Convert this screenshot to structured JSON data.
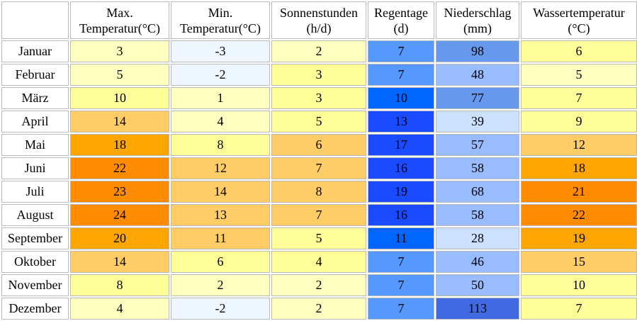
{
  "headers": [
    {
      "line1": "Max.",
      "line2": "Temperatur(°C)"
    },
    {
      "line1": "Min.",
      "line2": "Temperatur(°C)"
    },
    {
      "line1": "Sonnenstunden",
      "line2": "(h/d)"
    },
    {
      "line1": "Regentage",
      "line2": "(d)"
    },
    {
      "line1": "Niederschlag",
      "line2": "(mm)"
    },
    {
      "line1": "Wassertemperatur",
      "line2": "(°C)"
    }
  ],
  "rows": [
    {
      "month": "Januar",
      "cells": [
        {
          "v": "3",
          "c": "#ffffc0"
        },
        {
          "v": "-3",
          "c": "#eef6ff"
        },
        {
          "v": "2",
          "c": "#ffffc0"
        },
        {
          "v": "7",
          "c": "#5599ff"
        },
        {
          "v": "98",
          "c": "#6699ee"
        },
        {
          "v": "6",
          "c": "#ffff99"
        }
      ]
    },
    {
      "month": "Februar",
      "cells": [
        {
          "v": "5",
          "c": "#ffffc0"
        },
        {
          "v": "-2",
          "c": "#eef6ff"
        },
        {
          "v": "3",
          "c": "#ffff99"
        },
        {
          "v": "7",
          "c": "#5599ff"
        },
        {
          "v": "48",
          "c": "#99bbff"
        },
        {
          "v": "5",
          "c": "#ffffc0"
        }
      ]
    },
    {
      "month": "März",
      "cells": [
        {
          "v": "10",
          "c": "#ffff99"
        },
        {
          "v": "1",
          "c": "#ffffc0"
        },
        {
          "v": "3",
          "c": "#ffff99"
        },
        {
          "v": "10",
          "c": "#0066ff"
        },
        {
          "v": "77",
          "c": "#6699ee"
        },
        {
          "v": "7",
          "c": "#ffff99"
        }
      ]
    },
    {
      "month": "April",
      "cells": [
        {
          "v": "14",
          "c": "#ffcc66"
        },
        {
          "v": "4",
          "c": "#ffffc0"
        },
        {
          "v": "5",
          "c": "#ffff99"
        },
        {
          "v": "13",
          "c": "#1a4bff"
        },
        {
          "v": "39",
          "c": "#cce0ff"
        },
        {
          "v": "9",
          "c": "#ffff99"
        }
      ]
    },
    {
      "month": "Mai",
      "cells": [
        {
          "v": "18",
          "c": "#ffa500"
        },
        {
          "v": "8",
          "c": "#ffff99"
        },
        {
          "v": "6",
          "c": "#ffcc66"
        },
        {
          "v": "17",
          "c": "#1a4bff"
        },
        {
          "v": "57",
          "c": "#99bbff"
        },
        {
          "v": "12",
          "c": "#ffcc66"
        }
      ]
    },
    {
      "month": "Juni",
      "cells": [
        {
          "v": "22",
          "c": "#ff8c00"
        },
        {
          "v": "12",
          "c": "#ffcc66"
        },
        {
          "v": "7",
          "c": "#ffcc66"
        },
        {
          "v": "16",
          "c": "#1a4bff"
        },
        {
          "v": "58",
          "c": "#99bbff"
        },
        {
          "v": "18",
          "c": "#ffa500"
        }
      ]
    },
    {
      "month": "Juli",
      "cells": [
        {
          "v": "23",
          "c": "#ff8c00"
        },
        {
          "v": "14",
          "c": "#ffcc66"
        },
        {
          "v": "8",
          "c": "#ffcc66"
        },
        {
          "v": "19",
          "c": "#1a4bff"
        },
        {
          "v": "68",
          "c": "#99bbff"
        },
        {
          "v": "21",
          "c": "#ff8c00"
        }
      ]
    },
    {
      "month": "August",
      "cells": [
        {
          "v": "24",
          "c": "#ff8c00"
        },
        {
          "v": "13",
          "c": "#ffcc66"
        },
        {
          "v": "7",
          "c": "#ffcc66"
        },
        {
          "v": "16",
          "c": "#1a4bff"
        },
        {
          "v": "58",
          "c": "#99bbff"
        },
        {
          "v": "22",
          "c": "#ff8c00"
        }
      ]
    },
    {
      "month": "September",
      "cells": [
        {
          "v": "20",
          "c": "#ffa500"
        },
        {
          "v": "11",
          "c": "#ffcc66"
        },
        {
          "v": "5",
          "c": "#ffff99"
        },
        {
          "v": "11",
          "c": "#0066ff"
        },
        {
          "v": "28",
          "c": "#cce0ff"
        },
        {
          "v": "19",
          "c": "#ffa500"
        }
      ]
    },
    {
      "month": "Oktober",
      "cells": [
        {
          "v": "14",
          "c": "#ffcc66"
        },
        {
          "v": "6",
          "c": "#ffff99"
        },
        {
          "v": "4",
          "c": "#ffff99"
        },
        {
          "v": "7",
          "c": "#5599ff"
        },
        {
          "v": "46",
          "c": "#99bbff"
        },
        {
          "v": "15",
          "c": "#ffcc66"
        }
      ]
    },
    {
      "month": "November",
      "cells": [
        {
          "v": "8",
          "c": "#ffff99"
        },
        {
          "v": "2",
          "c": "#ffffc0"
        },
        {
          "v": "2",
          "c": "#ffffc0"
        },
        {
          "v": "7",
          "c": "#5599ff"
        },
        {
          "v": "50",
          "c": "#99bbff"
        },
        {
          "v": "10",
          "c": "#ffff99"
        }
      ]
    },
    {
      "month": "Dezember",
      "cells": [
        {
          "v": "4",
          "c": "#ffffc0"
        },
        {
          "v": "-2",
          "c": "#eef6ff"
        },
        {
          "v": "2",
          "c": "#ffffc0"
        },
        {
          "v": "7",
          "c": "#5599ff"
        },
        {
          "v": "113",
          "c": "#4169e1"
        },
        {
          "v": "7",
          "c": "#ffff99"
        }
      ]
    }
  ]
}
